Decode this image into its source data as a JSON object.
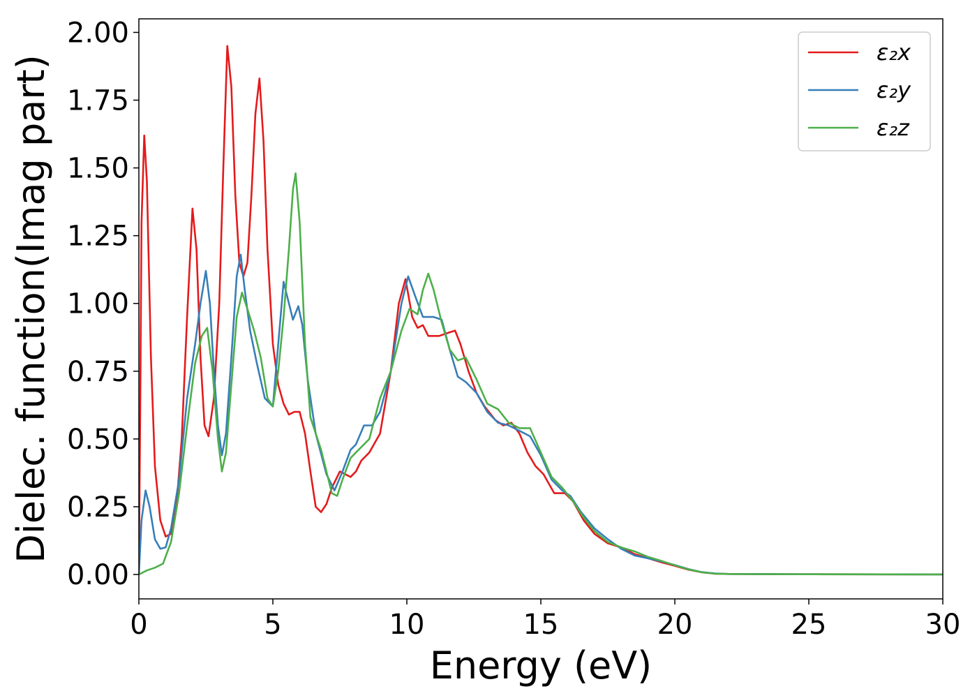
{
  "chart_data": {
    "type": "line",
    "title": "",
    "xlabel": "Energy (eV)",
    "ylabel": "Dielec. function(Imag part)",
    "xlim": [
      0,
      30
    ],
    "ylim": [
      -0.09,
      2.05
    ],
    "xticks": [
      0,
      5,
      10,
      15,
      20,
      25,
      30
    ],
    "xtick_labels": [
      "0",
      "5",
      "10",
      "15",
      "20",
      "25",
      "30"
    ],
    "yticks": [
      0,
      0.25,
      0.5,
      0.75,
      1.0,
      1.25,
      1.5,
      1.75,
      2.0
    ],
    "ytick_labels": [
      "0.00",
      "0.25",
      "0.50",
      "0.75",
      "1.00",
      "1.25",
      "1.50",
      "1.75",
      "2.00"
    ],
    "grid": false,
    "legend": "top-right",
    "series": [
      {
        "name": "ε₂x",
        "color": "#e41a1c",
        "points": [
          [
            0,
            0
          ],
          [
            0.05,
            0.6
          ],
          [
            0.1,
            1.3
          ],
          [
            0.2,
            1.62
          ],
          [
            0.3,
            1.45
          ],
          [
            0.45,
            0.8
          ],
          [
            0.6,
            0.4
          ],
          [
            0.8,
            0.2
          ],
          [
            1.0,
            0.14
          ],
          [
            1.2,
            0.15
          ],
          [
            1.4,
            0.25
          ],
          [
            1.6,
            0.5
          ],
          [
            1.8,
            0.95
          ],
          [
            2.0,
            1.35
          ],
          [
            2.15,
            1.2
          ],
          [
            2.3,
            0.8
          ],
          [
            2.45,
            0.55
          ],
          [
            2.6,
            0.51
          ],
          [
            2.8,
            0.65
          ],
          [
            3.0,
            1.0
          ],
          [
            3.15,
            1.5
          ],
          [
            3.3,
            1.95
          ],
          [
            3.45,
            1.8
          ],
          [
            3.6,
            1.4
          ],
          [
            3.75,
            1.15
          ],
          [
            3.9,
            1.1
          ],
          [
            4.05,
            1.15
          ],
          [
            4.2,
            1.4
          ],
          [
            4.35,
            1.7
          ],
          [
            4.5,
            1.83
          ],
          [
            4.65,
            1.6
          ],
          [
            4.8,
            1.2
          ],
          [
            5.0,
            0.85
          ],
          [
            5.2,
            0.7
          ],
          [
            5.4,
            0.63
          ],
          [
            5.6,
            0.59
          ],
          [
            5.8,
            0.6
          ],
          [
            6.0,
            0.6
          ],
          [
            6.2,
            0.52
          ],
          [
            6.4,
            0.38
          ],
          [
            6.6,
            0.25
          ],
          [
            6.8,
            0.23
          ],
          [
            7.0,
            0.26
          ],
          [
            7.2,
            0.32
          ],
          [
            7.5,
            0.38
          ],
          [
            7.7,
            0.37
          ],
          [
            7.9,
            0.36
          ],
          [
            8.1,
            0.38
          ],
          [
            8.3,
            0.42
          ],
          [
            8.6,
            0.45
          ],
          [
            9.0,
            0.52
          ],
          [
            9.4,
            0.75
          ],
          [
            9.7,
            1.0
          ],
          [
            9.95,
            1.09
          ],
          [
            10.2,
            0.95
          ],
          [
            10.4,
            0.91
          ],
          [
            10.6,
            0.92
          ],
          [
            10.8,
            0.88
          ],
          [
            11.2,
            0.88
          ],
          [
            11.5,
            0.89
          ],
          [
            11.8,
            0.9
          ],
          [
            12.0,
            0.85
          ],
          [
            12.3,
            0.75
          ],
          [
            12.6,
            0.67
          ],
          [
            12.9,
            0.62
          ],
          [
            13.3,
            0.57
          ],
          [
            13.6,
            0.55
          ],
          [
            13.9,
            0.56
          ],
          [
            14.2,
            0.52
          ],
          [
            14.5,
            0.45
          ],
          [
            14.8,
            0.4
          ],
          [
            15.1,
            0.37
          ],
          [
            15.5,
            0.3
          ],
          [
            15.9,
            0.3
          ],
          [
            16.2,
            0.27
          ],
          [
            16.6,
            0.2
          ],
          [
            17.0,
            0.15
          ],
          [
            17.5,
            0.115
          ],
          [
            18.0,
            0.1
          ],
          [
            18.5,
            0.075
          ],
          [
            19.0,
            0.06
          ],
          [
            19.5,
            0.045
          ],
          [
            20.0,
            0.032
          ],
          [
            20.5,
            0.018
          ],
          [
            21.0,
            0.008
          ],
          [
            21.5,
            0.003
          ],
          [
            22.0,
            0.002
          ],
          [
            25.0,
            0.001
          ],
          [
            30.0,
            0.0005
          ]
        ]
      },
      {
        "name": "ε₂y",
        "color": "#377eb8",
        "points": [
          [
            0,
            0
          ],
          [
            0.1,
            0.2
          ],
          [
            0.25,
            0.31
          ],
          [
            0.4,
            0.25
          ],
          [
            0.6,
            0.13
          ],
          [
            0.8,
            0.095
          ],
          [
            1.0,
            0.1
          ],
          [
            1.2,
            0.17
          ],
          [
            1.5,
            0.35
          ],
          [
            1.8,
            0.65
          ],
          [
            2.1,
            0.85
          ],
          [
            2.3,
            1.0
          ],
          [
            2.5,
            1.12
          ],
          [
            2.65,
            1.0
          ],
          [
            2.8,
            0.75
          ],
          [
            2.95,
            0.55
          ],
          [
            3.1,
            0.44
          ],
          [
            3.25,
            0.52
          ],
          [
            3.45,
            0.8
          ],
          [
            3.65,
            1.1
          ],
          [
            3.8,
            1.18
          ],
          [
            3.95,
            1.05
          ],
          [
            4.15,
            0.9
          ],
          [
            4.4,
            0.78
          ],
          [
            4.7,
            0.65
          ],
          [
            5.0,
            0.62
          ],
          [
            5.2,
            0.85
          ],
          [
            5.4,
            1.08
          ],
          [
            5.55,
            1.02
          ],
          [
            5.75,
            0.94
          ],
          [
            5.95,
            0.99
          ],
          [
            6.1,
            0.92
          ],
          [
            6.3,
            0.72
          ],
          [
            6.6,
            0.52
          ],
          [
            7.0,
            0.37
          ],
          [
            7.3,
            0.31
          ],
          [
            7.6,
            0.38
          ],
          [
            7.9,
            0.46
          ],
          [
            8.1,
            0.48
          ],
          [
            8.4,
            0.55
          ],
          [
            8.7,
            0.55
          ],
          [
            9.0,
            0.6
          ],
          [
            9.4,
            0.75
          ],
          [
            9.8,
            1.0
          ],
          [
            10.05,
            1.1
          ],
          [
            10.3,
            1.03
          ],
          [
            10.6,
            0.95
          ],
          [
            11.0,
            0.95
          ],
          [
            11.3,
            0.94
          ],
          [
            11.6,
            0.83
          ],
          [
            11.9,
            0.73
          ],
          [
            12.2,
            0.71
          ],
          [
            12.6,
            0.67
          ],
          [
            13.0,
            0.6
          ],
          [
            13.4,
            0.56
          ],
          [
            13.8,
            0.55
          ],
          [
            14.2,
            0.53
          ],
          [
            14.6,
            0.51
          ],
          [
            15.0,
            0.44
          ],
          [
            15.4,
            0.35
          ],
          [
            15.8,
            0.31
          ],
          [
            16.1,
            0.29
          ],
          [
            16.5,
            0.23
          ],
          [
            17.0,
            0.17
          ],
          [
            17.5,
            0.13
          ],
          [
            18.0,
            0.095
          ],
          [
            18.5,
            0.07
          ],
          [
            19.0,
            0.06
          ],
          [
            19.5,
            0.048
          ],
          [
            20.0,
            0.035
          ],
          [
            20.5,
            0.02
          ],
          [
            21.0,
            0.009
          ],
          [
            21.5,
            0.004
          ],
          [
            22.0,
            0.002
          ],
          [
            25.0,
            0.001
          ],
          [
            30.0,
            0.0005
          ]
        ]
      },
      {
        "name": "ε₂z",
        "color": "#4daf4a",
        "points": [
          [
            0,
            0
          ],
          [
            0.3,
            0.015
          ],
          [
            0.6,
            0.025
          ],
          [
            0.9,
            0.04
          ],
          [
            1.2,
            0.12
          ],
          [
            1.5,
            0.3
          ],
          [
            1.8,
            0.55
          ],
          [
            2.1,
            0.78
          ],
          [
            2.35,
            0.88
          ],
          [
            2.55,
            0.91
          ],
          [
            2.75,
            0.75
          ],
          [
            2.95,
            0.5
          ],
          [
            3.1,
            0.38
          ],
          [
            3.25,
            0.45
          ],
          [
            3.45,
            0.7
          ],
          [
            3.65,
            0.95
          ],
          [
            3.85,
            1.04
          ],
          [
            4.05,
            0.98
          ],
          [
            4.3,
            0.9
          ],
          [
            4.55,
            0.8
          ],
          [
            4.8,
            0.65
          ],
          [
            5.0,
            0.62
          ],
          [
            5.2,
            0.75
          ],
          [
            5.4,
            0.95
          ],
          [
            5.6,
            1.2
          ],
          [
            5.75,
            1.42
          ],
          [
            5.85,
            1.48
          ],
          [
            6.0,
            1.3
          ],
          [
            6.2,
            0.85
          ],
          [
            6.4,
            0.58
          ],
          [
            6.6,
            0.52
          ],
          [
            6.8,
            0.46
          ],
          [
            7.0,
            0.38
          ],
          [
            7.2,
            0.3
          ],
          [
            7.4,
            0.29
          ],
          [
            7.6,
            0.35
          ],
          [
            7.9,
            0.43
          ],
          [
            8.2,
            0.46
          ],
          [
            8.6,
            0.5
          ],
          [
            9.0,
            0.65
          ],
          [
            9.4,
            0.75
          ],
          [
            9.8,
            0.9
          ],
          [
            10.1,
            0.98
          ],
          [
            10.4,
            0.96
          ],
          [
            10.6,
            1.05
          ],
          [
            10.8,
            1.11
          ],
          [
            11.0,
            1.05
          ],
          [
            11.3,
            0.93
          ],
          [
            11.6,
            0.83
          ],
          [
            11.9,
            0.79
          ],
          [
            12.2,
            0.8
          ],
          [
            12.6,
            0.72
          ],
          [
            13.0,
            0.63
          ],
          [
            13.4,
            0.61
          ],
          [
            13.8,
            0.56
          ],
          [
            14.2,
            0.54
          ],
          [
            14.6,
            0.54
          ],
          [
            15.0,
            0.45
          ],
          [
            15.4,
            0.36
          ],
          [
            15.8,
            0.32
          ],
          [
            16.2,
            0.27
          ],
          [
            16.6,
            0.21
          ],
          [
            17.0,
            0.16
          ],
          [
            17.5,
            0.12
          ],
          [
            18.0,
            0.1
          ],
          [
            18.5,
            0.085
          ],
          [
            19.0,
            0.065
          ],
          [
            19.5,
            0.05
          ],
          [
            20.0,
            0.034
          ],
          [
            20.5,
            0.019
          ],
          [
            21.0,
            0.008
          ],
          [
            21.5,
            0.003
          ],
          [
            22.0,
            0.002
          ],
          [
            25.0,
            0.001
          ],
          [
            30.0,
            0.0005
          ]
        ]
      }
    ]
  }
}
